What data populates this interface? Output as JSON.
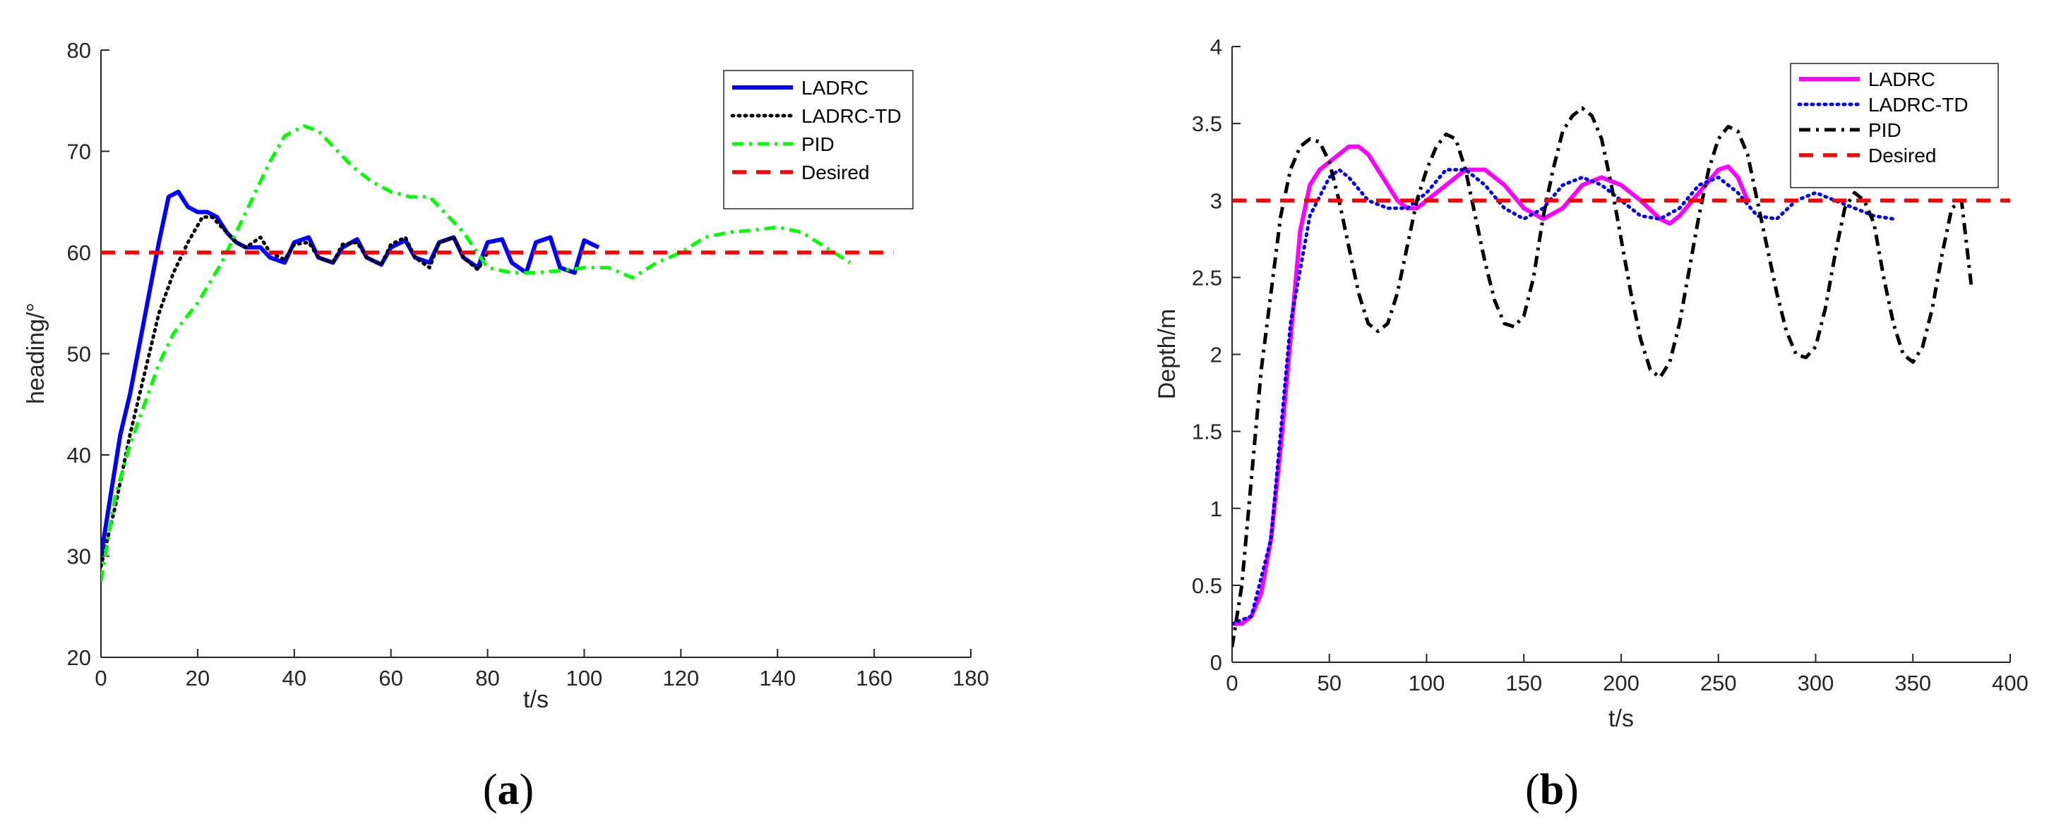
{
  "chart_data": [
    {
      "id": "a",
      "type": "line",
      "caption_open": "(",
      "caption_letter": "a",
      "caption_close": ")",
      "xlabel": "t/s",
      "ylabel": "heading/°",
      "xlim": [
        0,
        180
      ],
      "ylim": [
        20,
        80
      ],
      "xticks": [
        0,
        20,
        40,
        60,
        80,
        100,
        120,
        140,
        160,
        180
      ],
      "yticks": [
        20,
        30,
        40,
        50,
        60,
        70,
        80
      ],
      "legend_position": "top-right",
      "series": [
        {
          "name": "LADRC",
          "color": "#0000ff",
          "style": "solid",
          "x": [
            0,
            2,
            4,
            6,
            8,
            10,
            12,
            14,
            16,
            18,
            20,
            22,
            24,
            26,
            28,
            30,
            33,
            35,
            38,
            40,
            43,
            45,
            48,
            50,
            53,
            55,
            58,
            60,
            63,
            65,
            68,
            70,
            73,
            75,
            78,
            80,
            83,
            85,
            88,
            90,
            93,
            95,
            98,
            100,
            103
          ],
          "y": [
            30,
            36,
            42,
            46,
            51,
            56,
            61,
            65.5,
            66,
            64.5,
            64,
            64,
            63.5,
            62,
            61,
            60.5,
            60.5,
            59.5,
            59,
            61,
            61.5,
            59.5,
            59,
            60.5,
            61.3,
            59.5,
            58.8,
            60.5,
            61.2,
            59.5,
            59,
            61,
            61.5,
            59.5,
            58.5,
            61,
            61.3,
            59,
            58,
            61,
            61.5,
            58.5,
            58,
            61.2,
            60.5
          ]
        },
        {
          "name": "LADRC-TD",
          "color": "#000000",
          "style": "dotted",
          "x": [
            0,
            3,
            6,
            9,
            12,
            15,
            18,
            21,
            23,
            25,
            28,
            30,
            33,
            35,
            38,
            40,
            43,
            45,
            48,
            50,
            53,
            55,
            58,
            60,
            63,
            65,
            68,
            70,
            73,
            75,
            78,
            80
          ],
          "y": [
            29,
            35,
            42,
            48,
            54,
            58,
            61,
            63.5,
            63.5,
            62.5,
            61,
            60.5,
            61.5,
            60,
            59.3,
            60.8,
            61,
            59.5,
            59,
            60.8,
            61,
            59.5,
            58.8,
            60.8,
            61.5,
            59.5,
            58.5,
            61,
            61.5,
            59.5,
            58.3,
            60
          ]
        },
        {
          "name": "PID",
          "color": "#00ff00",
          "style": "dashdot",
          "x": [
            0,
            3,
            6,
            9,
            12,
            15,
            20,
            25,
            30,
            35,
            38,
            40,
            42,
            45,
            48,
            52,
            56,
            60,
            64,
            68,
            70,
            75,
            80,
            85,
            90,
            95,
            100,
            105,
            110,
            115,
            120,
            125,
            130,
            135,
            140,
            145,
            150,
            155
          ],
          "y": [
            27.5,
            36,
            41,
            45,
            49,
            52,
            55,
            59,
            64,
            69,
            71.5,
            72,
            72.5,
            72,
            70.5,
            68.5,
            67,
            66,
            65.5,
            65.5,
            64.5,
            62,
            58.5,
            58,
            58,
            58.2,
            58.5,
            58.5,
            57.5,
            59,
            60,
            61.5,
            62,
            62.2,
            62.5,
            62,
            60.5,
            59
          ]
        },
        {
          "name": "Desired",
          "color": "#ff0000",
          "style": "dashed",
          "x": [
            0,
            164
          ],
          "y": [
            60,
            60
          ]
        }
      ]
    },
    {
      "id": "b",
      "type": "line",
      "caption_open": "(",
      "caption_letter": "b",
      "caption_close": ")",
      "xlabel": "t/s",
      "ylabel": "Depth/m",
      "xlim": [
        0,
        400
      ],
      "ylim": [
        0,
        4
      ],
      "xticks": [
        0,
        50,
        100,
        150,
        200,
        250,
        300,
        350,
        400
      ],
      "yticks": [
        0,
        0.5,
        1,
        1.5,
        2,
        2.5,
        3,
        3.5,
        4
      ],
      "ytick_labels": [
        "0",
        "0.5",
        "1",
        "1.5",
        "2",
        "2.5",
        "3",
        "3.5",
        "4"
      ],
      "legend_position": "top-right",
      "series": [
        {
          "name": "LADRC",
          "color": "#ff00ff",
          "style": "solid",
          "x": [
            0,
            5,
            10,
            15,
            20,
            25,
            30,
            35,
            40,
            45,
            50,
            55,
            60,
            65,
            70,
            75,
            80,
            85,
            90,
            95,
            100,
            110,
            120,
            130,
            140,
            150,
            160,
            170,
            180,
            190,
            200,
            210,
            220,
            225,
            230,
            240,
            250,
            255,
            260,
            265
          ],
          "y": [
            0.25,
            0.25,
            0.3,
            0.45,
            0.8,
            1.4,
            2.1,
            2.8,
            3.1,
            3.2,
            3.25,
            3.3,
            3.35,
            3.35,
            3.3,
            3.2,
            3.1,
            3.0,
            2.95,
            2.95,
            3.0,
            3.1,
            3.2,
            3.2,
            3.1,
            2.95,
            2.88,
            2.95,
            3.1,
            3.15,
            3.1,
            3.0,
            2.88,
            2.85,
            2.9,
            3.05,
            3.2,
            3.22,
            3.15,
            3.0
          ]
        },
        {
          "name": "LADRC-TD",
          "color": "#0000ff",
          "style": "dotted",
          "x": [
            0,
            10,
            20,
            30,
            40,
            50,
            55,
            60,
            70,
            80,
            90,
            100,
            110,
            120,
            130,
            140,
            150,
            160,
            170,
            180,
            190,
            200,
            210,
            220,
            230,
            240,
            250,
            260,
            270,
            280,
            290,
            300,
            310,
            320,
            330,
            340
          ],
          "y": [
            0.25,
            0.3,
            0.8,
            2.2,
            2.9,
            3.15,
            3.2,
            3.15,
            3.0,
            2.95,
            2.95,
            3.05,
            3.2,
            3.2,
            3.1,
            2.95,
            2.88,
            2.95,
            3.1,
            3.15,
            3.1,
            3.0,
            2.9,
            2.88,
            2.95,
            3.1,
            3.15,
            3.05,
            2.9,
            2.88,
            3.0,
            3.05,
            3.0,
            2.95,
            2.9,
            2.88
          ]
        },
        {
          "name": "PID",
          "color": "#000000",
          "style": "dashdot",
          "x": [
            0,
            5,
            10,
            15,
            20,
            25,
            30,
            35,
            40,
            45,
            50,
            55,
            60,
            65,
            70,
            75,
            80,
            85,
            90,
            95,
            100,
            105,
            110,
            115,
            120,
            125,
            130,
            135,
            140,
            145,
            150,
            155,
            160,
            165,
            170,
            175,
            180,
            185,
            190,
            195,
            200,
            205,
            210,
            215,
            220,
            225,
            230,
            235,
            240,
            245,
            250,
            255,
            260,
            265,
            270,
            275,
            280,
            285,
            290,
            295,
            300,
            305,
            310,
            315,
            320,
            325,
            330,
            335,
            340,
            345,
            350,
            355,
            360,
            365,
            370,
            375,
            380
          ],
          "y": [
            0.1,
            0.5,
            1.2,
            1.9,
            2.4,
            2.9,
            3.2,
            3.35,
            3.4,
            3.38,
            3.25,
            3.0,
            2.7,
            2.4,
            2.2,
            2.15,
            2.2,
            2.4,
            2.7,
            3.0,
            3.2,
            3.35,
            3.43,
            3.4,
            3.2,
            2.9,
            2.6,
            2.35,
            2.2,
            2.18,
            2.25,
            2.5,
            2.9,
            3.2,
            3.45,
            3.55,
            3.6,
            3.55,
            3.4,
            3.1,
            2.75,
            2.4,
            2.1,
            1.9,
            1.85,
            1.95,
            2.2,
            2.55,
            2.9,
            3.2,
            3.4,
            3.48,
            3.45,
            3.3,
            3.0,
            2.7,
            2.4,
            2.15,
            2.0,
            1.98,
            2.05,
            2.3,
            2.65,
            2.95,
            3.05,
            3.0,
            2.85,
            2.5,
            2.2,
            2.0,
            1.95,
            2.05,
            2.3,
            2.65,
            2.95,
            3.0,
            2.45
          ]
        },
        {
          "name": "Desired",
          "color": "#ff0000",
          "style": "dashed",
          "x": [
            0,
            400
          ],
          "y": [
            3,
            3
          ]
        }
      ]
    }
  ]
}
